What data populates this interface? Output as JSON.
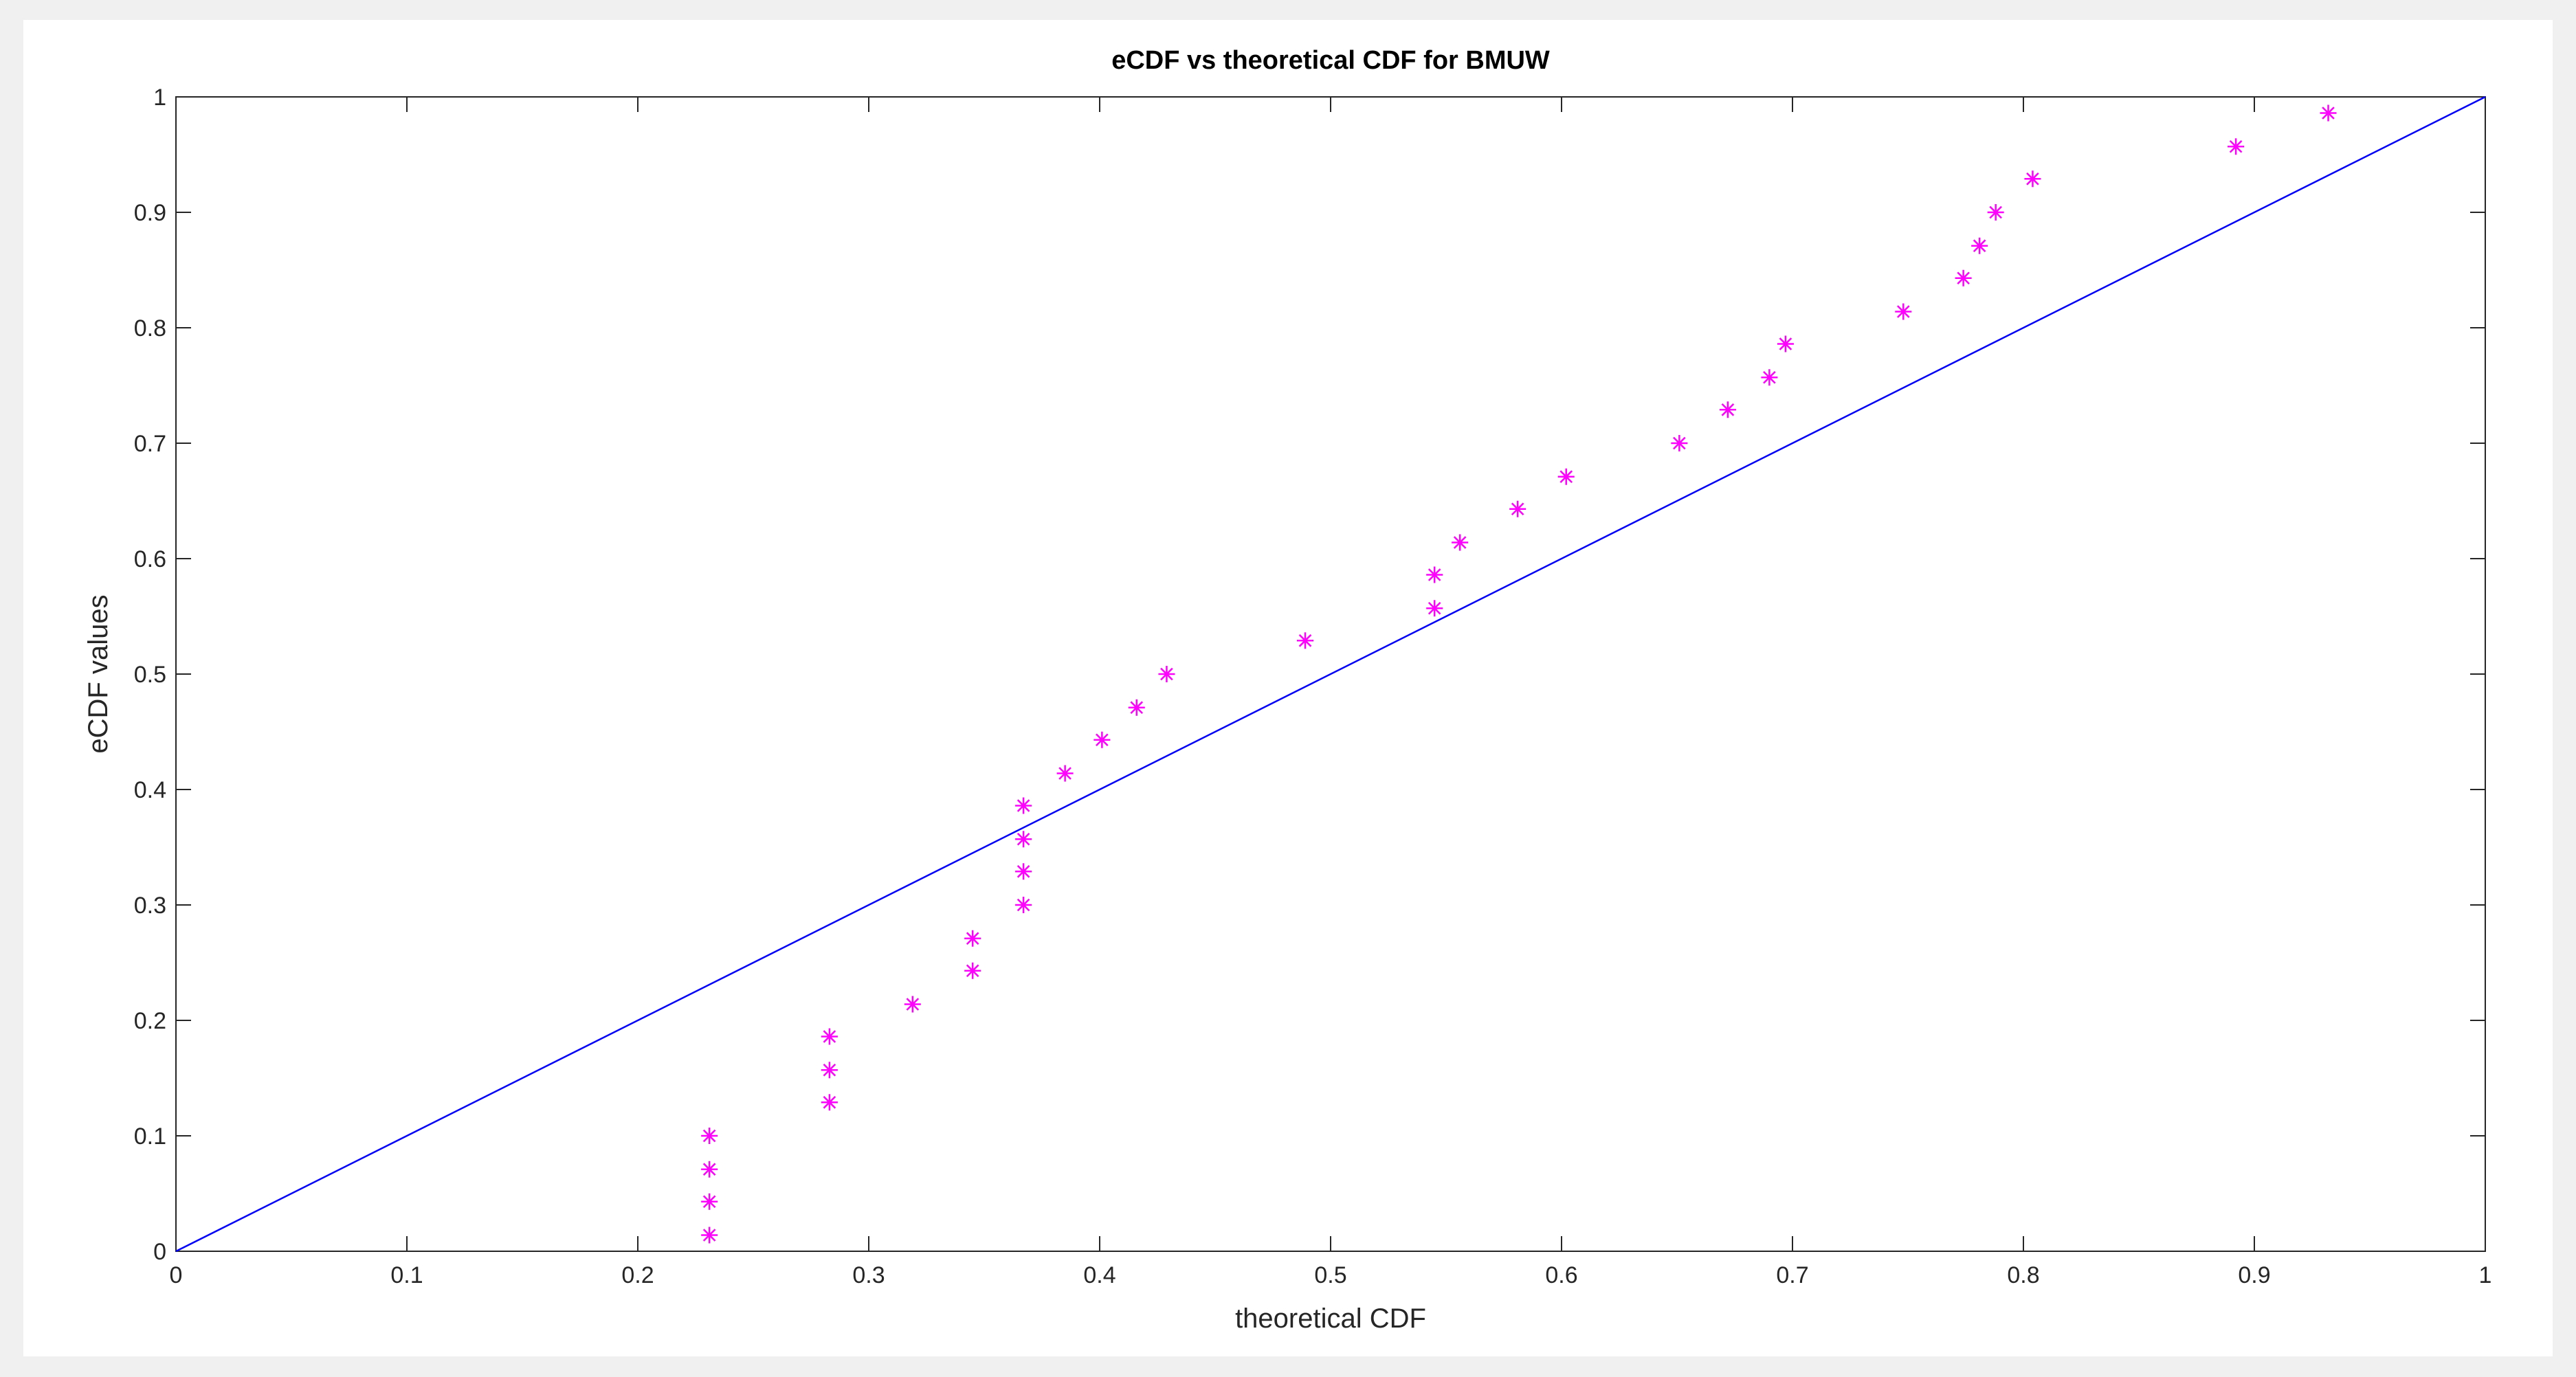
{
  "chart_data": {
    "type": "scatter",
    "title": "eCDF vs theoretical CDF for BMUW",
    "xlabel": "theoretical CDF",
    "ylabel": "eCDF values",
    "xlim": [
      0,
      1
    ],
    "ylim": [
      0,
      1
    ],
    "xticks": [
      0,
      0.1,
      0.2,
      0.3,
      0.4,
      0.5,
      0.6,
      0.7,
      0.8,
      0.9,
      1
    ],
    "yticks": [
      0,
      0.1,
      0.2,
      0.3,
      0.4,
      0.5,
      0.6,
      0.7,
      0.8,
      0.9,
      1
    ],
    "grid": false,
    "series": [
      {
        "color": "#ff00ff",
        "marker": "asterisk",
        "x": [
          0.231,
          0.231,
          0.231,
          0.231,
          0.283,
          0.283,
          0.283,
          0.319,
          0.345,
          0.345,
          0.367,
          0.367,
          0.367,
          0.367,
          0.385,
          0.401,
          0.416,
          0.429,
          0.489,
          0.545,
          0.545,
          0.556,
          0.581,
          0.602,
          0.651,
          0.672,
          0.69,
          0.697,
          0.748,
          0.774,
          0.781,
          0.788,
          0.804,
          0.892,
          0.932
        ],
        "values": [
          0.014,
          0.043,
          0.071,
          0.1,
          0.129,
          0.157,
          0.186,
          0.214,
          0.243,
          0.271,
          0.3,
          0.329,
          0.357,
          0.386,
          0.414,
          0.443,
          0.471,
          0.5,
          0.529,
          0.557,
          0.586,
          0.614,
          0.643,
          0.671,
          0.7,
          0.729,
          0.757,
          0.786,
          0.814,
          0.843,
          0.871,
          0.9,
          0.929,
          0.957,
          0.986
        ]
      },
      {
        "color": "#0000ff",
        "marker": "line",
        "x": [
          0,
          1
        ],
        "values": [
          0,
          1
        ]
      }
    ]
  }
}
